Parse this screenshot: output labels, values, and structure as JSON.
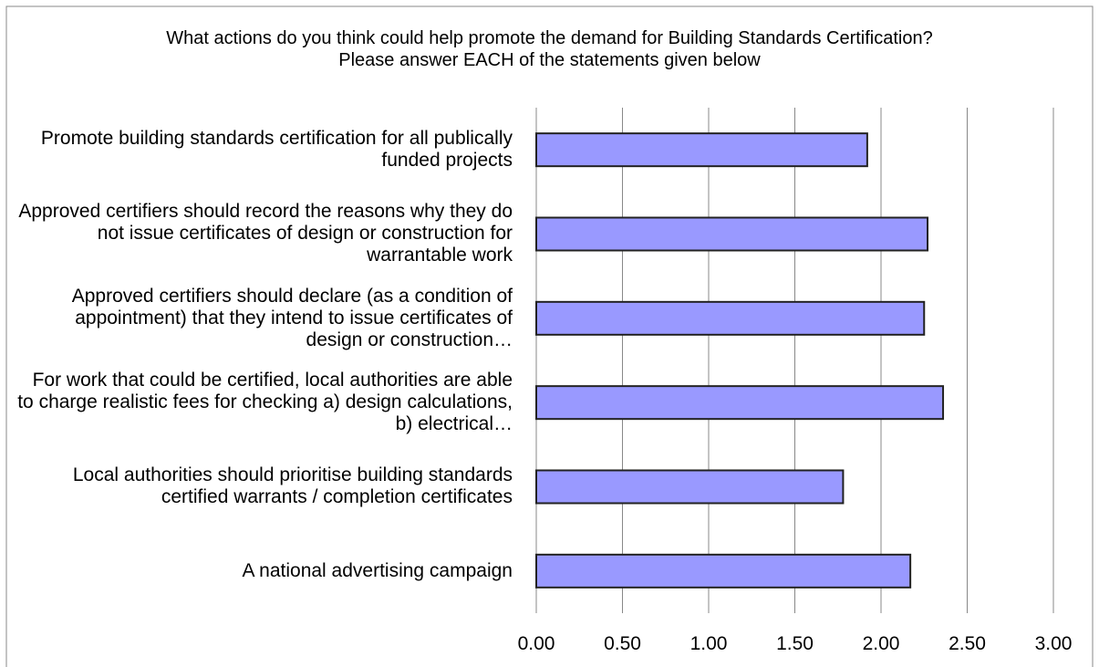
{
  "chart_data": {
    "type": "bar",
    "orientation": "horizontal",
    "title": "What actions do you think could help promote the demand for Building Standards Certification?      Please answer EACH of the statements given below",
    "categories": [
      "Promote building standards certification for all publically funded projects",
      "Approved certifiers should record the reasons why they do not issue certificates of design or construction for warrantable work",
      "Approved certifiers should declare (as a condition of appointment) that they intend to issue certificates of design or construction…",
      "For work that could be certified, local authorities are able to charge realistic fees for checking a) design calculations, b) electrical…",
      "Local authorities should prioritise building standards certified warrants / completion certificates",
      "A national advertising campaign"
    ],
    "values": [
      1.92,
      2.27,
      2.25,
      2.36,
      1.78,
      2.17
    ],
    "color": "#9999ff",
    "xlim": [
      0,
      3
    ],
    "xticks": [
      {
        "value": 0,
        "label": "0.00"
      },
      {
        "value": 0.5,
        "label": "0.50"
      },
      {
        "value": 1,
        "label": "1.00"
      },
      {
        "value": 1.5,
        "label": "1.50"
      },
      {
        "value": 2,
        "label": "2.00"
      },
      {
        "value": 2.5,
        "label": "2.50"
      },
      {
        "value": 3,
        "label": "3.00"
      }
    ],
    "grid": true
  }
}
